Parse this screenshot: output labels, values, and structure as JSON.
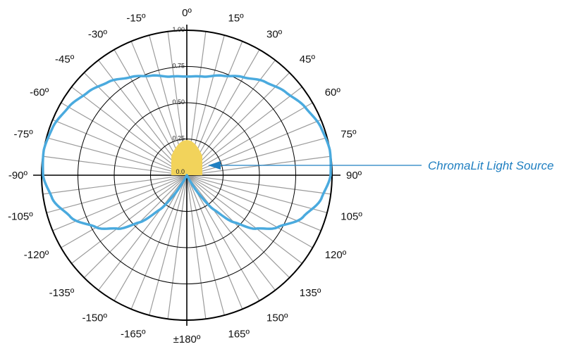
{
  "colors": {
    "background": "#ffffff",
    "grid": "#9b9b9b",
    "axis": "#000000",
    "distribution": "#4aaade",
    "source_fill": "#f2d35b",
    "callout": "#1f7fc1",
    "text": "#111111"
  },
  "chart_data": {
    "type": "polar",
    "radial_ticks": [
      "0.0",
      "0.25",
      "0.50",
      "0.75",
      "1.00"
    ],
    "radial_values": [
      0.25,
      0.5,
      0.75,
      1.0
    ],
    "spoke_step_deg": 7.5,
    "angle_labels": [
      {
        "angle": 0,
        "text": "0º"
      },
      {
        "angle": 15,
        "text": "15º"
      },
      {
        "angle": 30,
        "text": "30º"
      },
      {
        "angle": 45,
        "text": "45º"
      },
      {
        "angle": 60,
        "text": "60º"
      },
      {
        "angle": 75,
        "text": "75º"
      },
      {
        "angle": 90,
        "text": "90º"
      },
      {
        "angle": 105,
        "text": "105º"
      },
      {
        "angle": 120,
        "text": "120º"
      },
      {
        "angle": 135,
        "text": "135º"
      },
      {
        "angle": 150,
        "text": "150º"
      },
      {
        "angle": 165,
        "text": "165º"
      },
      {
        "angle": 180,
        "text": "±180º"
      },
      {
        "angle": -165,
        "text": "-165º"
      },
      {
        "angle": -150,
        "text": "-150º"
      },
      {
        "angle": -135,
        "text": "-135º"
      },
      {
        "angle": -120,
        "text": "-120º"
      },
      {
        "angle": -105,
        "text": "-105º"
      },
      {
        "angle": -90,
        "text": "-90º"
      },
      {
        "angle": -75,
        "text": "-75º"
      },
      {
        "angle": -60,
        "text": "-60º"
      },
      {
        "angle": -45,
        "text": "-45º"
      },
      {
        "angle": -30,
        "text": "-30º"
      },
      {
        "angle": -15,
        "text": "-15º"
      }
    ],
    "series": [
      {
        "values_by_angle": [
          [
            0,
            0.68
          ],
          [
            10,
            0.69
          ],
          [
            20,
            0.73
          ],
          [
            30,
            0.78
          ],
          [
            40,
            0.84
          ],
          [
            50,
            0.89
          ],
          [
            60,
            0.94
          ],
          [
            70,
            0.98
          ],
          [
            80,
            1.0
          ],
          [
            90,
            0.99
          ],
          [
            100,
            0.94
          ],
          [
            110,
            0.85
          ],
          [
            120,
            0.72
          ],
          [
            128,
            0.6
          ],
          [
            135,
            0.46
          ],
          [
            142,
            0.3
          ],
          [
            148,
            0.14
          ],
          [
            152,
            0.0
          ]
        ]
      }
    ],
    "source": {
      "label": "ChromaLit Light Source",
      "radius": 0.25
    }
  }
}
